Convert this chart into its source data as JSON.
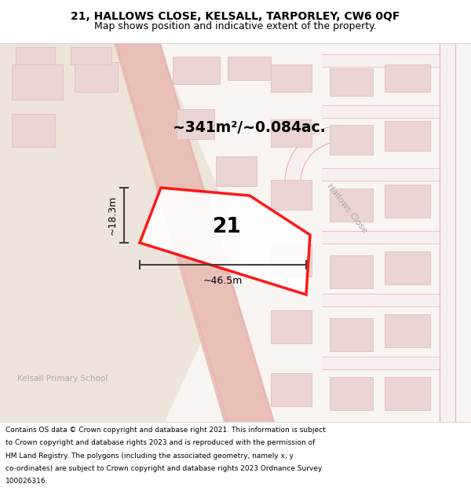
{
  "title_line1": "21, HALLOWS CLOSE, KELSALL, TARPORLEY, CW6 0QF",
  "title_line2": "Map shows position and indicative extent of the property.",
  "area_text": "~341m²/~0.084ac.",
  "label_number": "21",
  "dim_width": "~46.5m",
  "dim_height": "~18.3m",
  "street_label": "Hallows Close",
  "school_label": "Kelsall Primary School",
  "footer_lines": [
    "Contains OS data © Crown copyright and database right 2021. This information is subject",
    "to Crown copyright and database rights 2023 and is reproduced with the permission of",
    "HM Land Registry. The polygons (including the associated geometry, namely x, y",
    "co-ordinates) are subject to Crown copyright and database rights 2023 Ordnance Survey",
    "100026316."
  ],
  "map_bg_color": "#ffffff",
  "plot_fill_color": "#ffffff",
  "plot_edge_color": "#ff0000",
  "dim_color": "#404040",
  "title_bg": "#ffffff",
  "footer_bg": "#ffffff",
  "beige_bg": "#ede5db",
  "road_fill": "#e8c0b8",
  "building_face": "#ead4d4",
  "building_edge": "#e0b8b8",
  "road_line": "#e8b0b0",
  "street_text_color": "#b0a8a8",
  "school_text_color": "#b0a8a8"
}
